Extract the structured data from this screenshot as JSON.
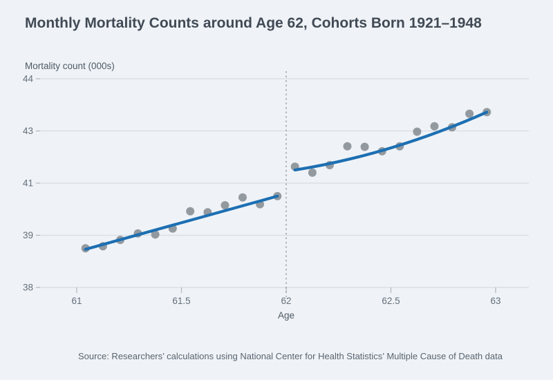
{
  "chart": {
    "title": "Monthly Mortality Counts around Age 62, Cohorts Born 1921–1948",
    "y_axis_title": "Mortality count (000s)",
    "x_axis_title": "Age",
    "source": "Source: Researchers’ calculations using National Center for Health Statistics’ Multiple Cause of Death data",
    "cutoff_age": 62,
    "colors": {
      "background": "#eff3f7",
      "title_text": "#414a55",
      "axis_text": "#4e5863",
      "tick_text": "#646e79",
      "source_text": "#59636e",
      "gridline": "#d8dce1",
      "tick_mark": "#aeb5bd",
      "dashed_cutoff": "#9aa2ab",
      "scatter_dot": "#82898f",
      "fit_line": "#1d6fb2"
    }
  },
  "chart_data": {
    "type": "scatter",
    "title": "Monthly Mortality Counts around Age 62, Cohorts Born 1921–1948",
    "xlabel": "Age",
    "ylabel": "Mortality count (000s)",
    "x_ticks": [
      61,
      61.5,
      62,
      62.5,
      63
    ],
    "y_ticks": [
      44,
      43,
      41,
      39,
      38
    ],
    "x_range": [
      60.83,
      63.16
    ],
    "grid": "horizontal-only",
    "legend": "none",
    "annotations": [
      {
        "type": "vline",
        "x": 62,
        "style": "dashed"
      }
    ],
    "series": [
      {
        "name": "Monthly deaths before age 62",
        "type": "scatter",
        "x": [
          61.042,
          61.125,
          61.208,
          61.292,
          61.375,
          61.458,
          61.542,
          61.625,
          61.708,
          61.792,
          61.875,
          61.958
        ],
        "y": [
          38.75,
          38.79,
          38.91,
          39.07,
          39.03,
          39.26,
          39.92,
          39.88,
          40.15,
          40.45,
          40.19,
          40.5
        ]
      },
      {
        "name": "Monthly deaths after age 62",
        "type": "scatter",
        "x": [
          62.042,
          62.125,
          62.208,
          62.292,
          62.375,
          62.458,
          62.542,
          62.625,
          62.708,
          62.792,
          62.875,
          62.958
        ],
        "y": [
          41.63,
          41.4,
          41.69,
          42.41,
          42.39,
          42.22,
          42.41,
          42.97,
          43.09,
          43.07,
          43.33,
          43.36
        ]
      },
      {
        "name": "Fitted trend before age 62",
        "type": "line",
        "x": [
          61.042,
          61.5,
          61.958
        ],
        "y": [
          38.73,
          39.48,
          40.5
        ]
      },
      {
        "name": "Fitted trend after age 62",
        "type": "line",
        "x": [
          62.042,
          62.5,
          62.958
        ],
        "y": [
          41.5,
          42.35,
          43.36
        ]
      }
    ]
  }
}
